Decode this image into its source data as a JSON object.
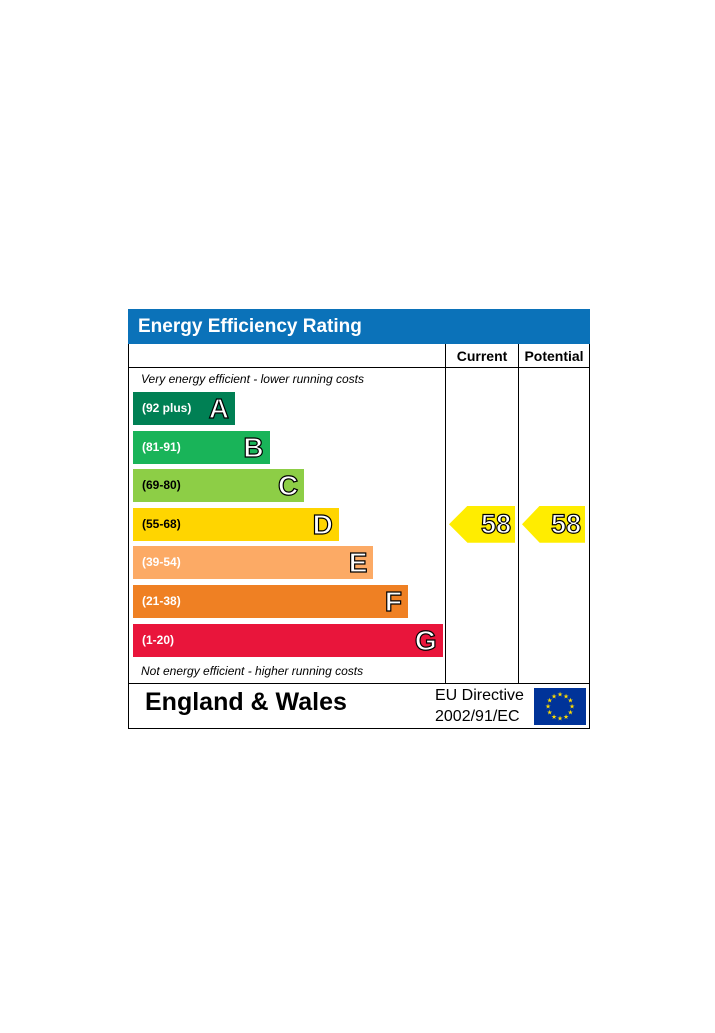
{
  "chart_data": {
    "type": "table",
    "title": "Energy Efficiency Rating",
    "columns": [
      "Current",
      "Potential"
    ],
    "top_note": "Very energy efficient - lower running costs",
    "bottom_note": "Not energy efficient - higher running costs",
    "bands": [
      {
        "letter": "A",
        "range": "(92 plus)",
        "color": "#008054"
      },
      {
        "letter": "B",
        "range": "(81-91)",
        "color": "#19b459"
      },
      {
        "letter": "C",
        "range": "(69-80)",
        "color": "#8dce46"
      },
      {
        "letter": "D",
        "range": "(55-68)",
        "color": "#ffd500"
      },
      {
        "letter": "E",
        "range": "(39-54)",
        "color": "#fcaa65"
      },
      {
        "letter": "F",
        "range": "(21-38)",
        "color": "#ef8023"
      },
      {
        "letter": "G",
        "range": "(1-20)",
        "color": "#e9153b"
      }
    ],
    "current": 58,
    "potential": 58,
    "current_band": "D",
    "potential_band": "D",
    "footer": {
      "country": "England & Wales",
      "directive_line1": "EU Directive",
      "directive_line2": "2002/91/EC"
    }
  },
  "colors": {
    "title_bar": "#0b72b9",
    "arrow": "#ffed00",
    "eu_flag": "#003399",
    "eu_stars": "#ffdd00"
  },
  "icons": {
    "eu_flag": "eu-flag-icon"
  }
}
